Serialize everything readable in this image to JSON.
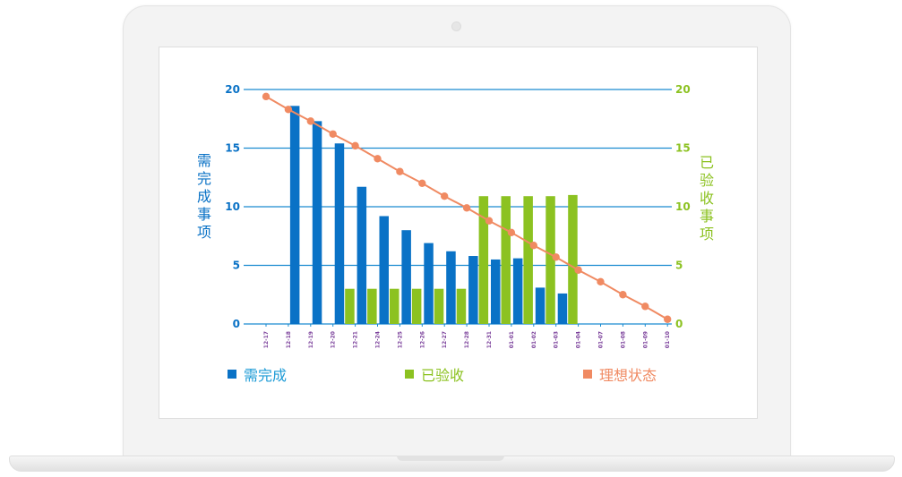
{
  "chart_data": {
    "type": "bar",
    "categories": [
      "12-17",
      "12-18",
      "12-19",
      "12-20",
      "12-21",
      "12-24",
      "12-25",
      "12-26",
      "12-27",
      "12-28",
      "12-31",
      "01-01",
      "01-02",
      "01-03",
      "01-04",
      "01-07",
      "01-08",
      "01-09",
      "01-10"
    ],
    "series": [
      {
        "name": "需完成",
        "type": "bar",
        "axis": "left",
        "color": "#0a72c6",
        "values": [
          null,
          18.6,
          17.3,
          15.4,
          11.7,
          9.2,
          8.0,
          6.9,
          6.2,
          5.8,
          5.5,
          5.6,
          3.1,
          2.6,
          null,
          null,
          null,
          null,
          null
        ]
      },
      {
        "name": "已验收",
        "type": "bar",
        "axis": "right",
        "color": "#8cc221",
        "values": [
          null,
          null,
          null,
          3.0,
          3.0,
          3.0,
          3.0,
          3.0,
          3.0,
          10.9,
          10.9,
          10.9,
          10.9,
          11.0,
          null,
          null,
          null,
          null,
          null
        ]
      },
      {
        "name": "理想状态",
        "type": "line",
        "axis": "left",
        "color": "#f08a62",
        "values": [
          19.4,
          18.3,
          17.3,
          16.2,
          15.2,
          14.1,
          13.0,
          12.0,
          10.9,
          9.9,
          8.8,
          7.8,
          6.7,
          5.7,
          4.6,
          3.6,
          2.5,
          1.5,
          0.4
        ]
      }
    ],
    "ylabel_left": "需完成事项",
    "ylabel_right": "已验收事项",
    "ylim_left": [
      0,
      20
    ],
    "ylim_right": [
      0,
      20
    ],
    "yticks": [
      0,
      5,
      10,
      15,
      20
    ],
    "grid": true,
    "legend_position": "bottom",
    "colors": {
      "left_axis": "#0a72c6",
      "right_axis": "#8cc221",
      "ideal": "#f08a62",
      "grid": "#1a8bd0",
      "tick_label": "#7a3f9a"
    }
  }
}
